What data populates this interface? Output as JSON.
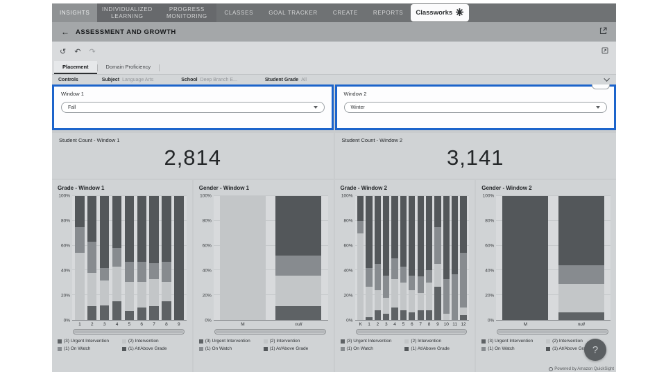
{
  "nav": {
    "items": [
      {
        "label": "INSIGHTS",
        "active": true,
        "tile": false
      },
      {
        "label": "INDIVIDUALIZED LEARNING",
        "active": false,
        "tile": true
      },
      {
        "label": "PROGRESS MONITORING",
        "active": false,
        "tile": true
      },
      {
        "label": "CLASSES",
        "active": false,
        "tile": false
      },
      {
        "label": "GOAL TRACKER",
        "active": false,
        "tile": false
      },
      {
        "label": "CREATE",
        "active": false,
        "tile": false
      },
      {
        "label": "REPORTS",
        "active": false,
        "tile": false
      }
    ],
    "brand": "Classworks"
  },
  "header": {
    "title": "ASSESSMENT AND GROWTH",
    "back_icon": "←"
  },
  "toolbar": {
    "reset_icon": "↺",
    "undo_icon": "↶",
    "redo_icon": "↷"
  },
  "tabs": [
    {
      "label": "Placement",
      "active": true
    },
    {
      "label": "Domain Proficiency",
      "active": false
    }
  ],
  "controls": {
    "label": "Controls",
    "filters": [
      {
        "name": "Subject",
        "value": "Language Arts"
      },
      {
        "name": "School",
        "value": "Deep Branch E..."
      },
      {
        "name": "Student Grade",
        "value": "All"
      }
    ]
  },
  "windows": [
    {
      "label": "Window 1",
      "value": "Fall"
    },
    {
      "label": "Window 2",
      "value": "Winter"
    }
  ],
  "student_counts": [
    {
      "title": "Student Count - Window 1",
      "value": "2,814"
    },
    {
      "title": "Student Count - Window 2",
      "value": "3,141"
    }
  ],
  "legend": [
    {
      "key": "urgent",
      "label": "(3) Urgent Intervention",
      "color": "#5e6265"
    },
    {
      "key": "intervention",
      "label": "(2) Intervention",
      "color": "#c3c6c8"
    },
    {
      "key": "onwatch",
      "label": "(1) On Watch",
      "color": "#878b8f"
    },
    {
      "key": "atabove",
      "label": "(1) At/Above Grade",
      "color": "#53575a"
    }
  ],
  "chart_data": [
    {
      "type": "stacked-bar-100",
      "title": "Grade - Window 1",
      "ylabel": "",
      "xlabel": "",
      "ylim": [
        0,
        100
      ],
      "yticks": [
        0,
        20,
        40,
        60,
        80,
        100
      ],
      "grid": true,
      "categories": [
        "1",
        "2",
        "3",
        "4",
        "5",
        "6",
        "7",
        "8",
        "9"
      ],
      "series": [
        {
          "key": "urgent",
          "name": "(3) Urgent Intervention",
          "values": [
            0,
            11,
            12,
            15,
            7,
            10,
            11,
            15,
            0
          ]
        },
        {
          "key": "intervention",
          "name": "(2) Intervention",
          "values": [
            54,
            27,
            20,
            28,
            24,
            21,
            22,
            16,
            0
          ]
        },
        {
          "key": "onwatch",
          "name": "(1) On Watch",
          "values": [
            21,
            25,
            10,
            15,
            16,
            16,
            13,
            16,
            0
          ]
        },
        {
          "key": "atabove",
          "name": "(1) At/Above Grade",
          "values": [
            25,
            37,
            58,
            42,
            53,
            53,
            54,
            53,
            100
          ]
        }
      ]
    },
    {
      "type": "stacked-bar-100",
      "title": "Gender - Window 1",
      "ylabel": "",
      "xlabel": "",
      "ylim": [
        0,
        100
      ],
      "yticks": [
        0,
        20,
        40,
        60,
        80,
        100
      ],
      "grid": true,
      "categories": [
        "M",
        "null"
      ],
      "series": [
        {
          "key": "urgent",
          "name": "(3) Urgent Intervention",
          "values": [
            0,
            11
          ]
        },
        {
          "key": "intervention",
          "name": "(2) Intervention",
          "values": [
            100,
            25
          ]
        },
        {
          "key": "onwatch",
          "name": "(1) On Watch",
          "values": [
            0,
            16
          ]
        },
        {
          "key": "atabove",
          "name": "(1) At/Above Grade",
          "values": [
            0,
            48
          ]
        }
      ]
    },
    {
      "type": "stacked-bar-100",
      "title": "Grade - Window 2",
      "ylabel": "",
      "xlabel": "",
      "ylim": [
        0,
        100
      ],
      "yticks": [
        0,
        20,
        40,
        60,
        80,
        100
      ],
      "grid": true,
      "categories": [
        "K",
        "1",
        "2",
        "3",
        "4",
        "5",
        "6",
        "7",
        "8",
        "9",
        "10",
        "11",
        "12"
      ],
      "series": [
        {
          "key": "urgent",
          "name": "(3) Urgent Intervention",
          "values": [
            0,
            2,
            8,
            5,
            10,
            8,
            6,
            8,
            8,
            27,
            0,
            0,
            4
          ]
        },
        {
          "key": "intervention",
          "name": "(2) Intervention",
          "values": [
            70,
            25,
            16,
            13,
            23,
            22,
            18,
            14,
            22,
            18,
            5,
            0,
            6
          ]
        },
        {
          "key": "onwatch",
          "name": "(1) On Watch",
          "values": [
            10,
            15,
            21,
            18,
            17,
            13,
            12,
            13,
            10,
            30,
            28,
            37,
            44
          ]
        },
        {
          "key": "atabove",
          "name": "(1) At/Above Grade",
          "values": [
            20,
            58,
            55,
            64,
            50,
            57,
            64,
            65,
            60,
            25,
            67,
            63,
            46
          ]
        }
      ]
    },
    {
      "type": "stacked-bar-100",
      "title": "Gender - Window 2",
      "ylabel": "",
      "xlabel": "",
      "ylim": [
        0,
        100
      ],
      "yticks": [
        0,
        20,
        40,
        60,
        80,
        100
      ],
      "grid": true,
      "categories": [
        "M",
        "null"
      ],
      "series": [
        {
          "key": "urgent",
          "name": "(3) Urgent Intervention",
          "values": [
            0,
            6
          ]
        },
        {
          "key": "intervention",
          "name": "(2) Intervention",
          "values": [
            0,
            23
          ]
        },
        {
          "key": "onwatch",
          "name": "(1) On Watch",
          "values": [
            0,
            15
          ]
        },
        {
          "key": "atabove",
          "name": "(1) At/Above Grade",
          "values": [
            100,
            56
          ]
        }
      ]
    }
  ],
  "footer": {
    "help_label": "?",
    "powered_by": "Powered by Amazon QuickSight"
  }
}
